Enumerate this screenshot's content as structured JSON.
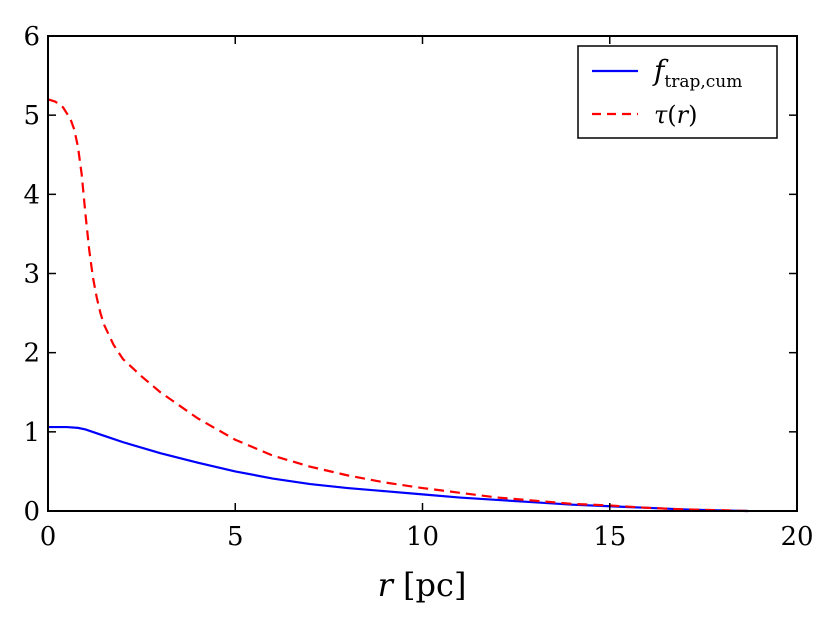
{
  "chart_data": {
    "type": "line",
    "xlabel": "r [pc]",
    "ylabel": "",
    "title": "",
    "xlim": [
      0,
      20
    ],
    "ylim": [
      0,
      6
    ],
    "xticks": [
      0,
      5,
      10,
      15,
      20
    ],
    "yticks": [
      0,
      1,
      2,
      3,
      4,
      5,
      6
    ],
    "grid": false,
    "legend_position": "top-right",
    "series": [
      {
        "name": "f_trap,cum",
        "color": "#0000ff",
        "dash": "solid",
        "x": [
          0,
          0.5,
          0.8,
          1.0,
          1.5,
          2,
          3,
          4,
          5,
          6,
          7,
          8,
          9,
          10,
          11,
          12,
          13,
          14,
          15,
          16,
          17,
          18,
          18.7
        ],
        "y": [
          1.06,
          1.06,
          1.05,
          1.03,
          0.95,
          0.87,
          0.73,
          0.61,
          0.5,
          0.41,
          0.34,
          0.29,
          0.25,
          0.21,
          0.17,
          0.14,
          0.11,
          0.08,
          0.06,
          0.04,
          0.02,
          0.007,
          0.0
        ]
      },
      {
        "name": "τ(r)",
        "color": "#ff0000",
        "dash": "dashed",
        "x": [
          0,
          0.2,
          0.4,
          0.6,
          0.7,
          0.8,
          0.9,
          1.0,
          1.1,
          1.2,
          1.3,
          1.4,
          1.5,
          1.75,
          2,
          2.5,
          3,
          4,
          5,
          6,
          7,
          8,
          9,
          10,
          11,
          12,
          13,
          14,
          15,
          16,
          17,
          18,
          18.7
        ],
        "y": [
          5.2,
          5.17,
          5.1,
          4.95,
          4.82,
          4.6,
          4.25,
          3.75,
          3.3,
          2.95,
          2.7,
          2.5,
          2.35,
          2.1,
          1.92,
          1.7,
          1.5,
          1.17,
          0.9,
          0.7,
          0.56,
          0.45,
          0.36,
          0.29,
          0.23,
          0.17,
          0.13,
          0.09,
          0.07,
          0.04,
          0.02,
          0.01,
          0.0
        ]
      }
    ]
  }
}
